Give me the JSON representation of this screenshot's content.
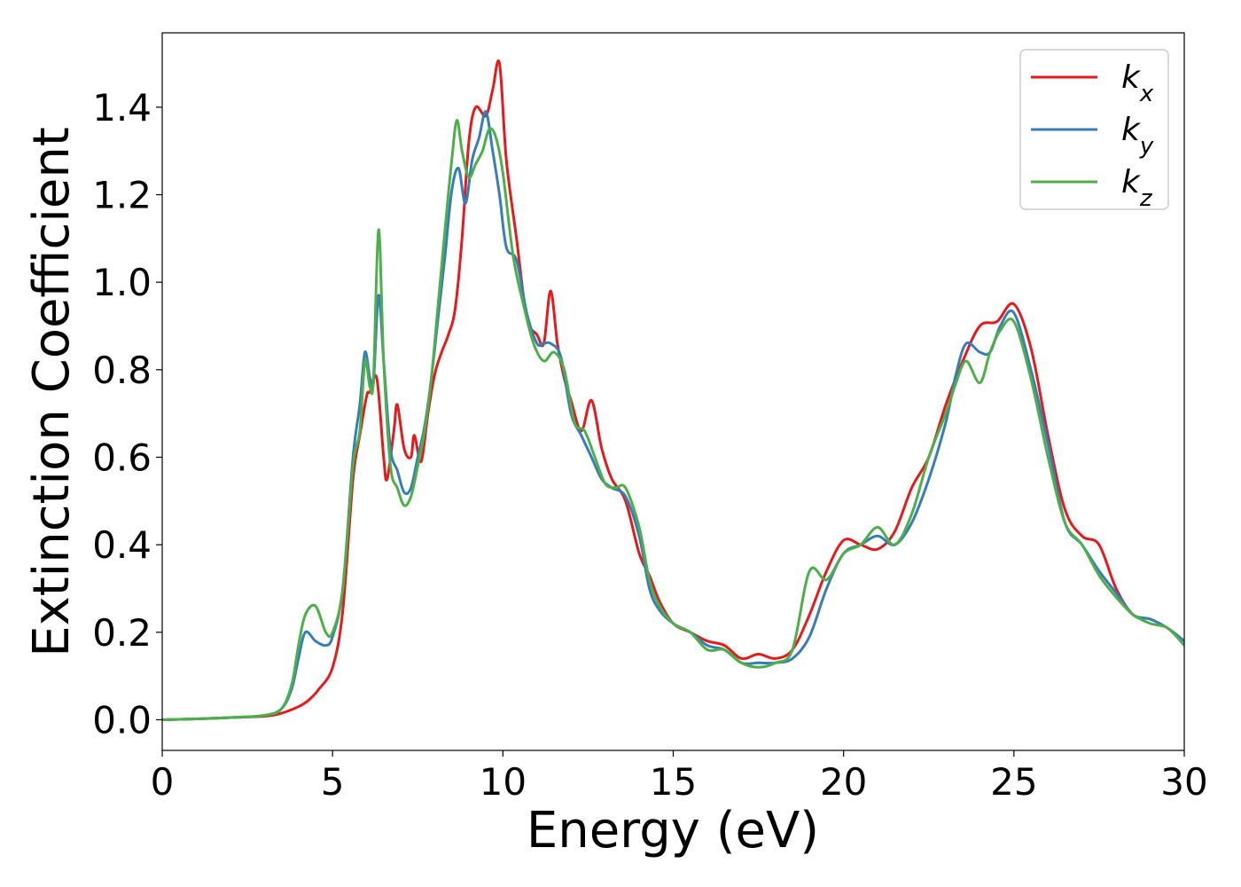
{
  "chart_data": {
    "type": "line",
    "title": "",
    "xlabel": "Energy (eV)",
    "ylabel": "Extinction Coefficient",
    "xlim": [
      0,
      30
    ],
    "ylim": [
      -0.07,
      1.57
    ],
    "xticks": [
      0,
      5,
      10,
      15,
      20,
      25,
      30
    ],
    "yticks": [
      0.0,
      0.2,
      0.4,
      0.6,
      0.8,
      1.0,
      1.2,
      1.4
    ],
    "grid": false,
    "legend_position": "top-right",
    "series": [
      {
        "name": "k",
        "subscript": "x",
        "color": "#e41a1c",
        "x": [
          0,
          1,
          2,
          3,
          3.5,
          4,
          4.3,
          4.6,
          5,
          5.3,
          5.6,
          5.8,
          6.0,
          6.1,
          6.3,
          6.5,
          6.6,
          6.8,
          6.9,
          7.1,
          7.3,
          7.4,
          7.6,
          7.8,
          8.0,
          8.2,
          8.4,
          8.6,
          8.8,
          9.0,
          9.2,
          9.5,
          9.7,
          9.9,
          10.1,
          10.4,
          10.7,
          11.0,
          11.2,
          11.4,
          11.6,
          11.8,
          12.0,
          12.3,
          12.6,
          12.9,
          13.2,
          13.6,
          14.0,
          14.3,
          14.6,
          15.0,
          15.5,
          16.0,
          16.5,
          17.0,
          17.5,
          18.0,
          18.5,
          19.0,
          19.5,
          20.0,
          20.5,
          21.0,
          21.5,
          22.0,
          22.5,
          23.0,
          23.5,
          24.0,
          24.5,
          25.0,
          25.5,
          26.0,
          26.5,
          27.0,
          27.5,
          28.0,
          28.5,
          29.0,
          29.5,
          30
        ],
        "values": [
          0.0,
          0.002,
          0.005,
          0.008,
          0.015,
          0.03,
          0.045,
          0.07,
          0.12,
          0.25,
          0.55,
          0.65,
          0.74,
          0.75,
          0.78,
          0.6,
          0.55,
          0.66,
          0.72,
          0.62,
          0.6,
          0.65,
          0.59,
          0.7,
          0.79,
          0.84,
          0.88,
          0.94,
          1.1,
          1.32,
          1.4,
          1.38,
          1.44,
          1.5,
          1.28,
          1.1,
          0.92,
          0.88,
          0.86,
          0.98,
          0.86,
          0.78,
          0.73,
          0.66,
          0.73,
          0.62,
          0.55,
          0.5,
          0.38,
          0.33,
          0.27,
          0.22,
          0.2,
          0.18,
          0.17,
          0.14,
          0.15,
          0.14,
          0.16,
          0.24,
          0.34,
          0.41,
          0.4,
          0.39,
          0.43,
          0.53,
          0.6,
          0.72,
          0.82,
          0.9,
          0.91,
          0.95,
          0.85,
          0.65,
          0.48,
          0.42,
          0.4,
          0.3,
          0.24,
          0.23,
          0.21,
          0.18
        ]
      },
      {
        "name": "k",
        "subscript": "y",
        "color": "#377eb8",
        "x": [
          0,
          1,
          2,
          3,
          3.5,
          3.8,
          4.0,
          4.2,
          4.5,
          4.8,
          5.0,
          5.3,
          5.6,
          5.8,
          5.95,
          6.1,
          6.2,
          6.35,
          6.5,
          6.7,
          6.9,
          7.1,
          7.3,
          7.5,
          7.7,
          7.9,
          8.1,
          8.3,
          8.5,
          8.7,
          8.9,
          9.1,
          9.3,
          9.5,
          9.7,
          9.9,
          10.1,
          10.4,
          10.7,
          11.0,
          11.2,
          11.4,
          11.7,
          12.0,
          12.3,
          12.6,
          12.9,
          13.2,
          13.6,
          14.0,
          14.3,
          14.6,
          15.0,
          15.5,
          16.0,
          16.5,
          17.0,
          17.5,
          18.0,
          18.5,
          19.0,
          19.5,
          20.0,
          20.5,
          21.0,
          21.5,
          22.0,
          22.5,
          23.0,
          23.3,
          23.6,
          24.0,
          24.3,
          24.6,
          25.0,
          25.5,
          26.0,
          26.5,
          27.0,
          27.5,
          28.0,
          28.5,
          29.0,
          29.5,
          30
        ],
        "values": [
          0.0,
          0.002,
          0.005,
          0.01,
          0.025,
          0.07,
          0.14,
          0.2,
          0.18,
          0.17,
          0.19,
          0.3,
          0.6,
          0.72,
          0.84,
          0.78,
          0.77,
          0.97,
          0.82,
          0.62,
          0.57,
          0.52,
          0.53,
          0.6,
          0.67,
          0.78,
          0.92,
          1.06,
          1.21,
          1.26,
          1.18,
          1.28,
          1.33,
          1.39,
          1.3,
          1.2,
          1.08,
          1.05,
          0.93,
          0.86,
          0.86,
          0.86,
          0.83,
          0.7,
          0.65,
          0.6,
          0.55,
          0.53,
          0.51,
          0.42,
          0.3,
          0.25,
          0.22,
          0.2,
          0.17,
          0.16,
          0.13,
          0.13,
          0.13,
          0.14,
          0.19,
          0.3,
          0.38,
          0.4,
          0.42,
          0.4,
          0.45,
          0.55,
          0.68,
          0.79,
          0.86,
          0.84,
          0.84,
          0.9,
          0.93,
          0.8,
          0.63,
          0.45,
          0.4,
          0.34,
          0.29,
          0.24,
          0.23,
          0.21,
          0.18
        ]
      },
      {
        "name": "k",
        "subscript": "z",
        "color": "#4daf4a",
        "x": [
          0,
          1,
          2,
          3,
          3.5,
          3.8,
          4.0,
          4.2,
          4.5,
          4.8,
          5.0,
          5.3,
          5.6,
          5.8,
          5.95,
          6.1,
          6.2,
          6.35,
          6.5,
          6.7,
          6.9,
          7.1,
          7.3,
          7.5,
          7.7,
          7.9,
          8.1,
          8.3,
          8.5,
          8.65,
          8.8,
          9.0,
          9.2,
          9.4,
          9.6,
          9.8,
          10.0,
          10.3,
          10.6,
          10.9,
          11.2,
          11.5,
          11.8,
          12.1,
          12.4,
          12.7,
          13.0,
          13.3,
          13.6,
          14.0,
          14.3,
          14.6,
          15.0,
          15.5,
          16.0,
          16.5,
          17.0,
          17.5,
          18.0,
          18.5,
          19.0,
          19.5,
          20.0,
          20.5,
          21.0,
          21.5,
          22.0,
          22.5,
          23.0,
          23.3,
          23.6,
          24.0,
          24.3,
          24.6,
          25.0,
          25.5,
          26.0,
          26.5,
          27.0,
          27.5,
          28.0,
          28.5,
          29.0,
          29.5,
          30
        ],
        "values": [
          0.0,
          0.002,
          0.005,
          0.01,
          0.025,
          0.08,
          0.17,
          0.24,
          0.26,
          0.2,
          0.2,
          0.3,
          0.58,
          0.66,
          0.82,
          0.76,
          0.78,
          1.12,
          0.82,
          0.58,
          0.53,
          0.49,
          0.51,
          0.58,
          0.66,
          0.78,
          0.95,
          1.12,
          1.28,
          1.37,
          1.3,
          1.24,
          1.27,
          1.3,
          1.35,
          1.33,
          1.25,
          1.06,
          0.95,
          0.86,
          0.82,
          0.84,
          0.8,
          0.68,
          0.66,
          0.6,
          0.54,
          0.53,
          0.53,
          0.44,
          0.32,
          0.26,
          0.22,
          0.2,
          0.16,
          0.16,
          0.13,
          0.12,
          0.13,
          0.16,
          0.34,
          0.32,
          0.38,
          0.4,
          0.44,
          0.4,
          0.47,
          0.6,
          0.7,
          0.77,
          0.82,
          0.77,
          0.84,
          0.89,
          0.91,
          0.78,
          0.6,
          0.45,
          0.4,
          0.33,
          0.28,
          0.24,
          0.22,
          0.21,
          0.17
        ]
      }
    ]
  }
}
